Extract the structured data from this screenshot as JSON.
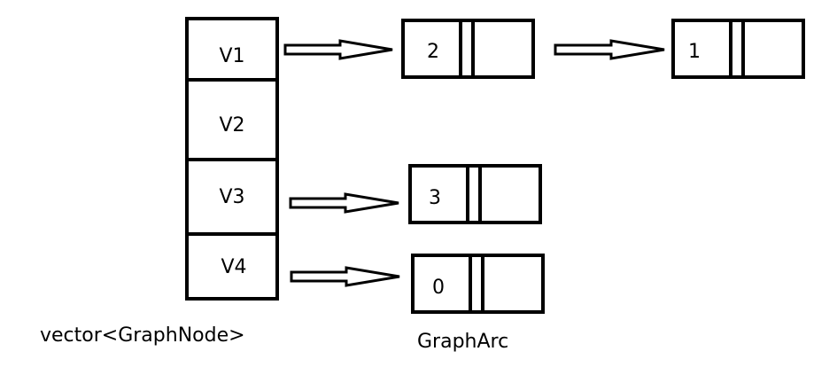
{
  "diagram": {
    "vector_cells": [
      "V1",
      "V2",
      "V3",
      "V4"
    ],
    "arcs": [
      {
        "from": "V1",
        "value": "2",
        "next": {
          "value": "1"
        }
      },
      {
        "from": "V3",
        "value": "3"
      },
      {
        "from": "V4",
        "value": "0"
      }
    ],
    "vector_label": "vector<GraphNode>",
    "arc_label": "GraphArc"
  }
}
